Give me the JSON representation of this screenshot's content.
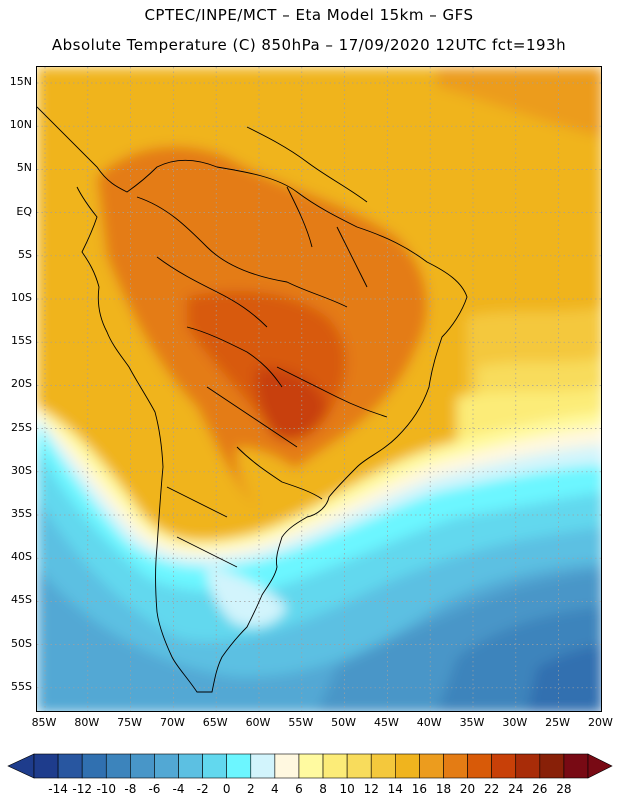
{
  "header": {
    "line1": "CPTEC/INPE/MCT –  Eta Model 15km – GFS",
    "line2": "Absolute Temperature (C) 850hPa – 17/09/2020 12UTC fct=193h"
  },
  "axes": {
    "lat_labels": [
      "15N",
      "10N",
      "5N",
      "EQ",
      "5S",
      "10S",
      "15S",
      "20S",
      "25S",
      "30S",
      "35S",
      "40S",
      "45S",
      "50S",
      "55S"
    ],
    "lon_labels": [
      "85W",
      "80W",
      "75W",
      "70W",
      "65W",
      "60W",
      "55W",
      "50W",
      "45W",
      "40W",
      "35W",
      "30W",
      "25W",
      "20W"
    ]
  },
  "legend": {
    "labels": [
      "-14",
      "-12",
      "-10",
      "-8",
      "-6",
      "-4",
      "-2",
      "0",
      "2",
      "4",
      "6",
      "8",
      "10",
      "12",
      "14",
      "16",
      "18",
      "20",
      "22",
      "24",
      "26",
      "28"
    ],
    "colors": [
      "#1e3c8c",
      "#2856a0",
      "#3070b0",
      "#3c84bc",
      "#4896c8",
      "#52a8d4",
      "#5cc0e2",
      "#62d8ee",
      "#6cf6ff",
      "#d2f4fc",
      "#fff8e0",
      "#fffaa0",
      "#fcec78",
      "#f8dc5c",
      "#f4c83c",
      "#f0b41e",
      "#ec9c1e",
      "#e47c14",
      "#d85a08",
      "#c84008",
      "#a82c08",
      "#882008",
      "#780a14"
    ]
  }
}
